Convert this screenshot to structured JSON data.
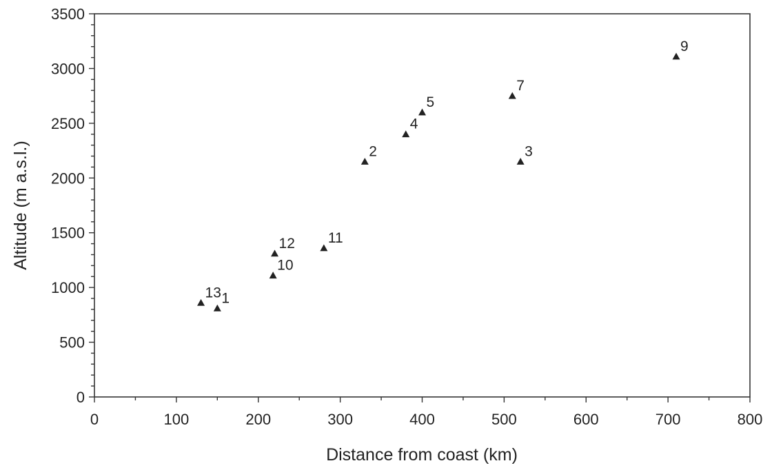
{
  "chart_data": {
    "type": "scatter",
    "xlabel": "Distance from coast (km)",
    "ylabel": "Altitude (m a.s.l.)",
    "xlim": [
      0,
      800
    ],
    "ylim": [
      0,
      3500
    ],
    "x_ticks": [
      0,
      100,
      200,
      300,
      400,
      500,
      600,
      700,
      800
    ],
    "y_ticks": [
      0,
      500,
      1000,
      1500,
      2000,
      2500,
      3000,
      3500
    ],
    "grid": false,
    "legend": "none",
    "marker": "triangle",
    "points": [
      {
        "label": "1",
        "x": 150,
        "y": 810
      },
      {
        "label": "2",
        "x": 330,
        "y": 2150
      },
      {
        "label": "3",
        "x": 520,
        "y": 2150
      },
      {
        "label": "4",
        "x": 380,
        "y": 2400
      },
      {
        "label": "5",
        "x": 400,
        "y": 2600
      },
      {
        "label": "7",
        "x": 510,
        "y": 2750
      },
      {
        "label": "9",
        "x": 710,
        "y": 3110
      },
      {
        "label": "10",
        "x": 218,
        "y": 1110
      },
      {
        "label": "11",
        "x": 280,
        "y": 1360
      },
      {
        "label": "12",
        "x": 220,
        "y": 1310
      },
      {
        "label": "13",
        "x": 130,
        "y": 860
      }
    ]
  }
}
